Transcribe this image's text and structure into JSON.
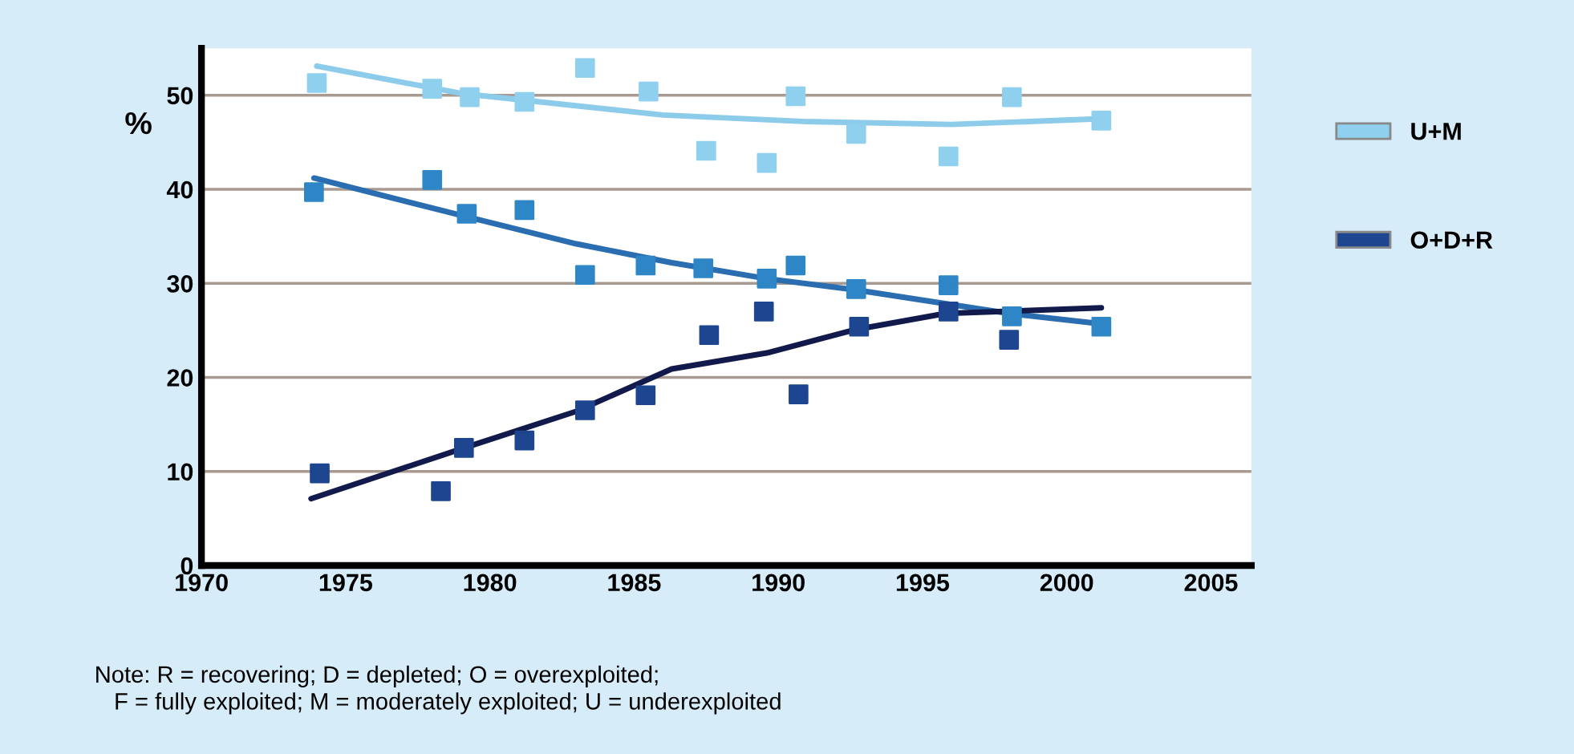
{
  "chart_data": {
    "type": "scatter",
    "ylabel": "%",
    "xlim": [
      1970,
      2006.4
    ],
    "xticks": [
      1970,
      1975,
      1980,
      1985,
      1990,
      1995,
      2000,
      2005
    ],
    "ylim": [
      0,
      55
    ],
    "yticks": [
      0,
      10,
      20,
      30,
      40,
      50
    ],
    "grid": "y",
    "legend": "right",
    "marker": "square",
    "annotations": [
      "Note: R = recovering; D = depleted; O = overexploited;\n   F = fully exploited; M = moderately exploited; U = underexploited"
    ],
    "series": [
      {
        "name": "U+M",
        "color": "#8fd0ef",
        "x": [
          1974,
          1978,
          1979.3,
          1981.2,
          1983.3,
          1985.5,
          1987.5,
          1989.6,
          1990.6,
          1992.7,
          1995.9,
          1998.1,
          2001.2
        ],
        "values": [
          51.3,
          50.7,
          49.8,
          49.3,
          52.9,
          50.4,
          44.1,
          42.8,
          49.9,
          45.9,
          43.5,
          49.8,
          47.3
        ]
      },
      {
        "color": "#2f86c6",
        "x": [
          1973.9,
          1978,
          1979.2,
          1981.2,
          1983.3,
          1985.4,
          1987.4,
          1989.6,
          1990.6,
          1992.7,
          1995.9,
          1998.1,
          2001.2
        ],
        "values": [
          39.7,
          41.0,
          37.4,
          37.8,
          30.9,
          31.9,
          31.6,
          30.5,
          31.9,
          29.4,
          29.8,
          26.5,
          25.4
        ]
      },
      {
        "name": "O+D+R",
        "color": "#1e4590",
        "x": [
          1974.1,
          1978.3,
          1979.1,
          1981.2,
          1983.3,
          1985.4,
          1987.6,
          1989.5,
          1990.7,
          1992.8,
          1995.9,
          1998
        ],
        "values": [
          9.8,
          7.9,
          12.5,
          13.3,
          16.5,
          18.1,
          24.5,
          27.0,
          18.2,
          25.4,
          27.0,
          24.0
        ]
      },
      {
        "type": "line",
        "marker": "none",
        "color": "#8ccbea",
        "x": [
          1974,
          1979,
          1986,
          1991,
          1996,
          2001.2
        ],
        "values": [
          53.1,
          50.2,
          47.9,
          47.2,
          46.9,
          47.5
        ]
      },
      {
        "type": "line",
        "marker": "none",
        "color": "#2a6db0",
        "x": [
          1973.9,
          1979.3,
          1983,
          1986.3,
          1989.6,
          1992.7,
          1998,
          2001.2
        ],
        "values": [
          41.2,
          37.0,
          34.2,
          32.2,
          30.5,
          29.3,
          26.8,
          25.7
        ]
      },
      {
        "type": "line",
        "marker": "none",
        "color": "#111a4a",
        "x": [
          1973.8,
          1979.3,
          1983,
          1986.3,
          1989.6,
          1992.7,
          1995.8,
          2001.2
        ],
        "values": [
          7.1,
          12.7,
          16.4,
          20.9,
          22.6,
          25.1,
          26.8,
          27.4
        ]
      }
    ]
  }
}
